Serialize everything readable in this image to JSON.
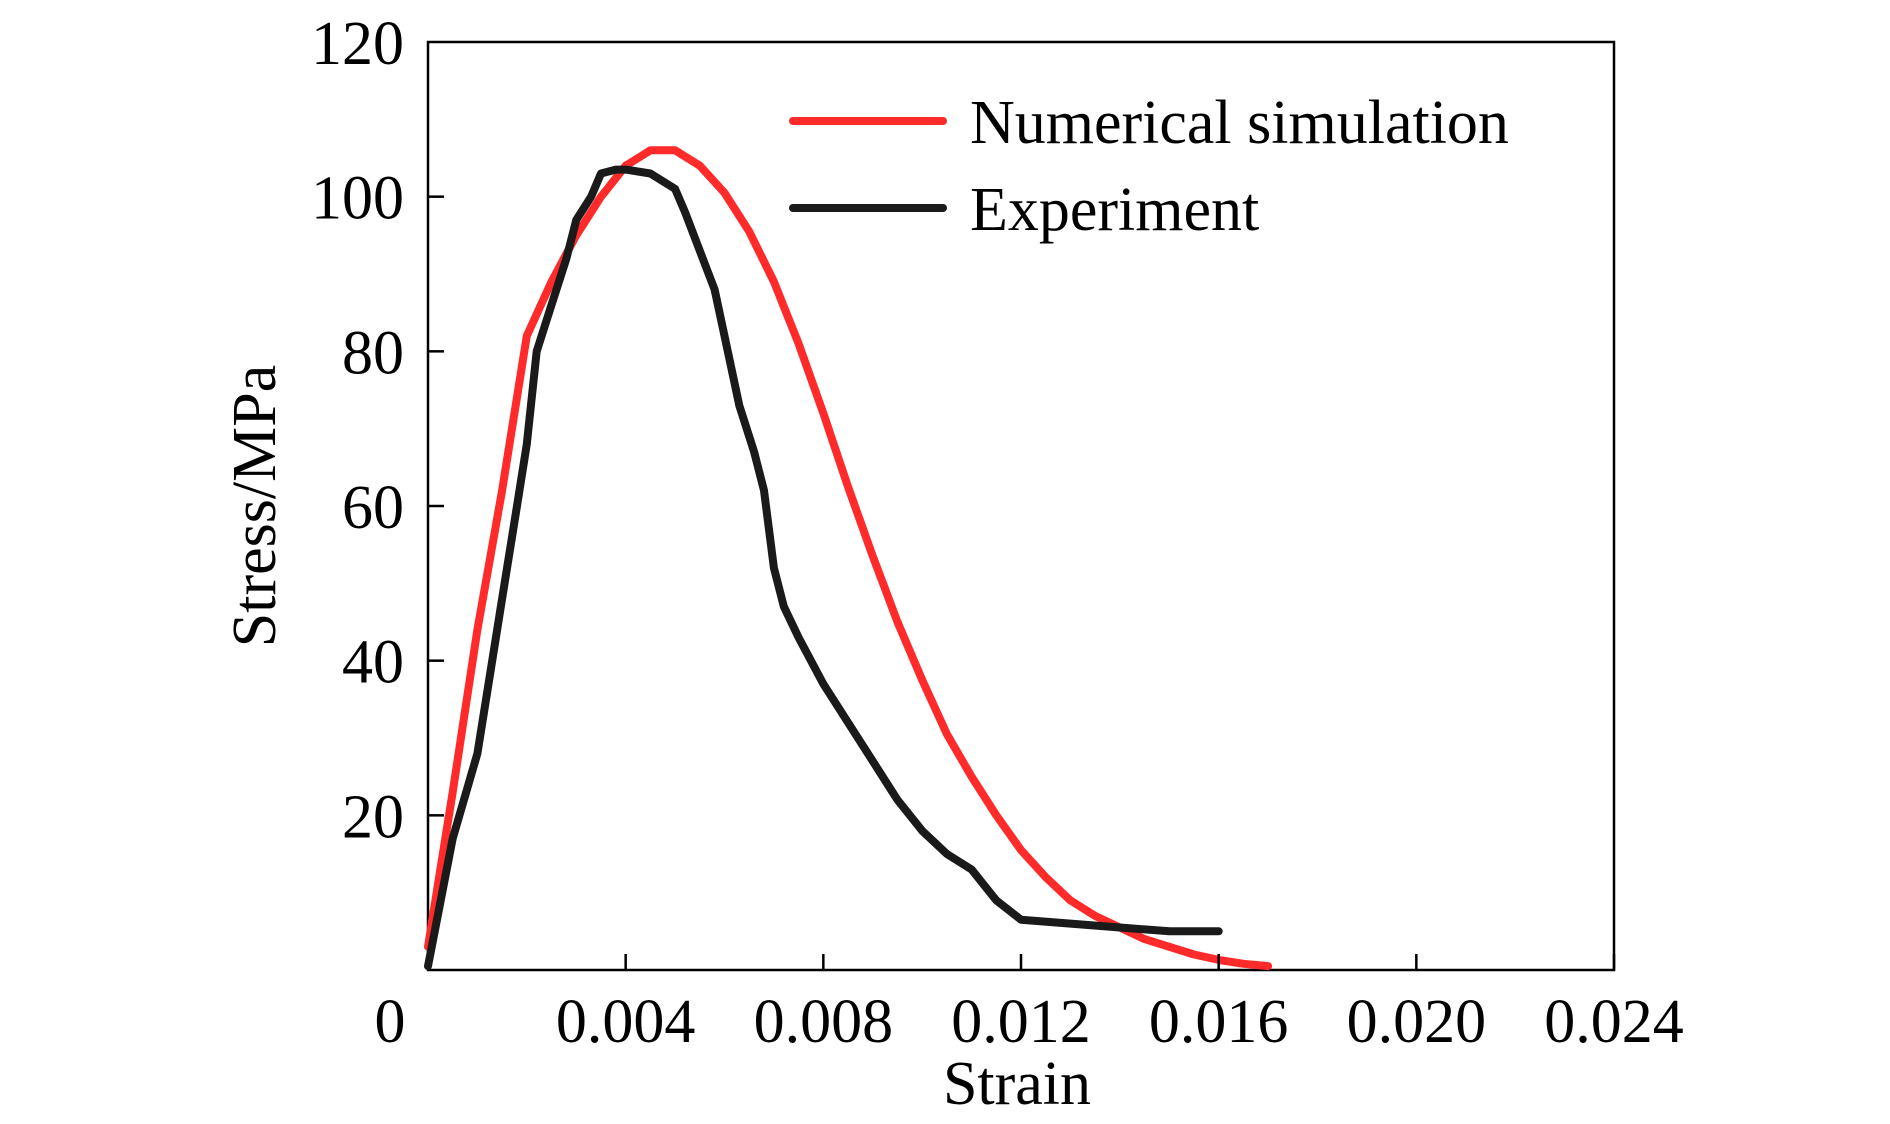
{
  "chart_data": {
    "type": "line",
    "title": "",
    "xlabel": "Strain",
    "ylabel": "Stress/MPa",
    "xlim": [
      0,
      0.024
    ],
    "ylim": [
      0,
      120
    ],
    "x_ticks": [
      {
        "value": 0,
        "label": "0"
      },
      {
        "value": 0.004,
        "label": "0.004"
      },
      {
        "value": 0.008,
        "label": "0.008"
      },
      {
        "value": 0.012,
        "label": "0.012"
      },
      {
        "value": 0.016,
        "label": "0.016"
      },
      {
        "value": 0.02,
        "label": "0.020"
      },
      {
        "value": 0.024,
        "label": "0.024"
      }
    ],
    "y_ticks": [
      {
        "value": 20,
        "label": "20"
      },
      {
        "value": 40,
        "label": "40"
      },
      {
        "value": 60,
        "label": "60"
      },
      {
        "value": 80,
        "label": "80"
      },
      {
        "value": 100,
        "label": "100"
      },
      {
        "value": 120,
        "label": "120"
      }
    ],
    "grid": false,
    "legend_position": "top-right",
    "series": [
      {
        "name": "Numerical simulation",
        "color": "#ff2a2a",
        "points": [
          [
            0.0,
            3
          ],
          [
            0.0005,
            23
          ],
          [
            0.001,
            44
          ],
          [
            0.0015,
            62
          ],
          [
            0.002,
            82
          ],
          [
            0.0025,
            89
          ],
          [
            0.003,
            95
          ],
          [
            0.0035,
            100
          ],
          [
            0.004,
            104
          ],
          [
            0.0045,
            106
          ],
          [
            0.005,
            106
          ],
          [
            0.0055,
            104
          ],
          [
            0.006,
            100.5
          ],
          [
            0.0065,
            95.5
          ],
          [
            0.007,
            89
          ],
          [
            0.0075,
            81
          ],
          [
            0.008,
            72
          ],
          [
            0.0085,
            62.5
          ],
          [
            0.009,
            53.5
          ],
          [
            0.0095,
            45
          ],
          [
            0.01,
            37.5
          ],
          [
            0.0105,
            30.5
          ],
          [
            0.011,
            25
          ],
          [
            0.0115,
            20
          ],
          [
            0.012,
            15.5
          ],
          [
            0.0125,
            12
          ],
          [
            0.013,
            9
          ],
          [
            0.0135,
            7
          ],
          [
            0.014,
            5.5
          ],
          [
            0.0145,
            4
          ],
          [
            0.015,
            3
          ],
          [
            0.0155,
            2
          ],
          [
            0.016,
            1.3
          ],
          [
            0.0165,
            0.8
          ],
          [
            0.017,
            0.5
          ]
        ]
      },
      {
        "name": "Experiment",
        "color": "#1a1a1a",
        "points": [
          [
            0.0,
            0.5
          ],
          [
            0.0005,
            17
          ],
          [
            0.001,
            28
          ],
          [
            0.0015,
            48
          ],
          [
            0.0018,
            60
          ],
          [
            0.002,
            68
          ],
          [
            0.0022,
            80
          ],
          [
            0.0025,
            86
          ],
          [
            0.0028,
            92
          ],
          [
            0.003,
            97
          ],
          [
            0.0033,
            100
          ],
          [
            0.0035,
            103
          ],
          [
            0.0038,
            103.5
          ],
          [
            0.004,
            103.5
          ],
          [
            0.0045,
            103
          ],
          [
            0.005,
            101
          ],
          [
            0.0052,
            98
          ],
          [
            0.0055,
            93
          ],
          [
            0.0058,
            88
          ],
          [
            0.006,
            82
          ],
          [
            0.0063,
            73
          ],
          [
            0.0066,
            67
          ],
          [
            0.0068,
            62
          ],
          [
            0.007,
            52
          ],
          [
            0.0072,
            47
          ],
          [
            0.0075,
            43
          ],
          [
            0.008,
            37
          ],
          [
            0.0085,
            32
          ],
          [
            0.009,
            27
          ],
          [
            0.0095,
            22
          ],
          [
            0.01,
            18
          ],
          [
            0.0105,
            15
          ],
          [
            0.011,
            13
          ],
          [
            0.0115,
            9
          ],
          [
            0.012,
            6.5
          ],
          [
            0.013,
            6
          ],
          [
            0.014,
            5.5
          ],
          [
            0.015,
            5
          ],
          [
            0.016,
            5
          ]
        ]
      }
    ]
  }
}
